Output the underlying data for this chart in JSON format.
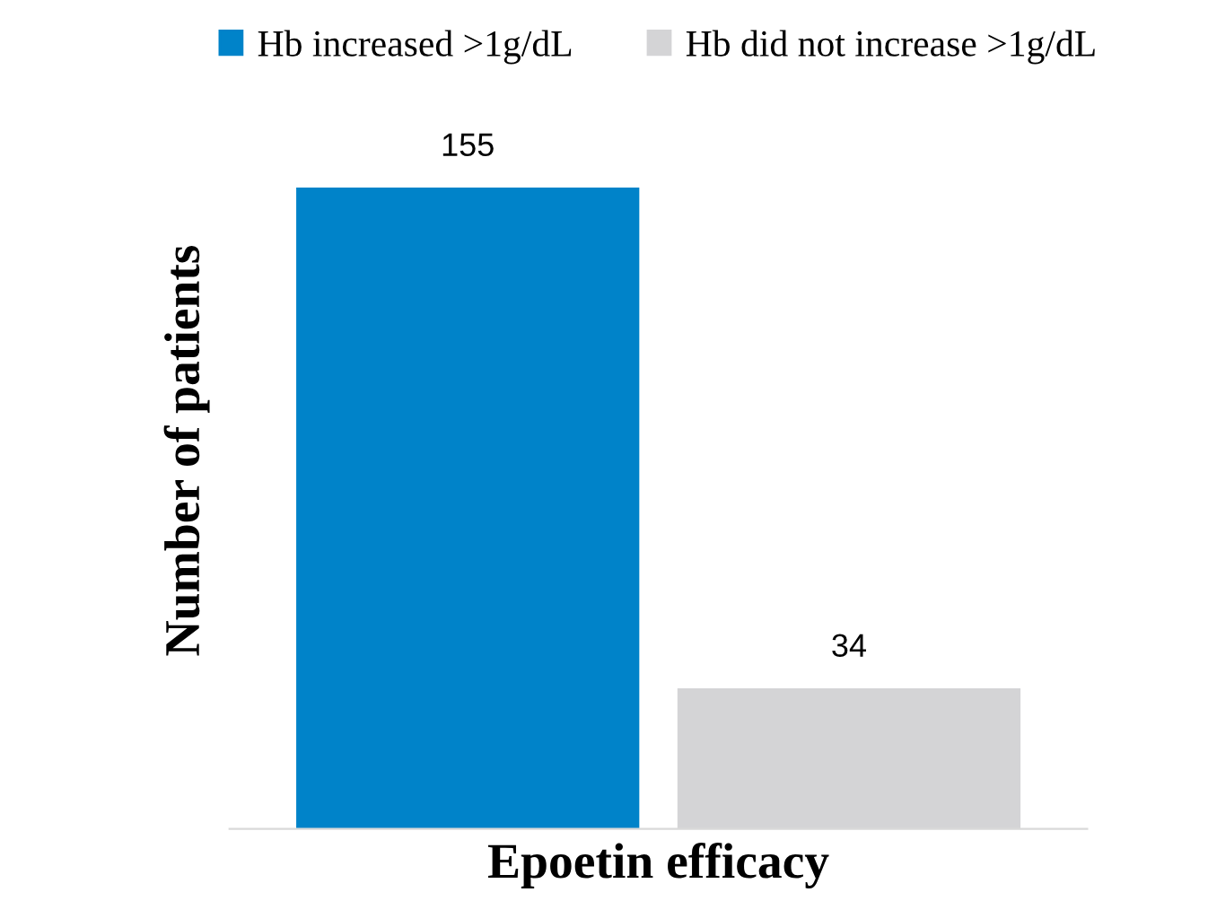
{
  "chart_data": {
    "type": "bar",
    "xlabel": "Epoetin efficacy",
    "ylabel": "Number of patients",
    "categories": [
      null
    ],
    "series": [
      {
        "name": "Hb increased >1g/dL",
        "color": "#0083c9",
        "values": [
          155
        ]
      },
      {
        "name": "Hb did not increase >1g/dL",
        "color": "#d4d4d6",
        "values": [
          34
        ]
      }
    ],
    "data_labels": true,
    "legend": "top",
    "grid": false
  }
}
